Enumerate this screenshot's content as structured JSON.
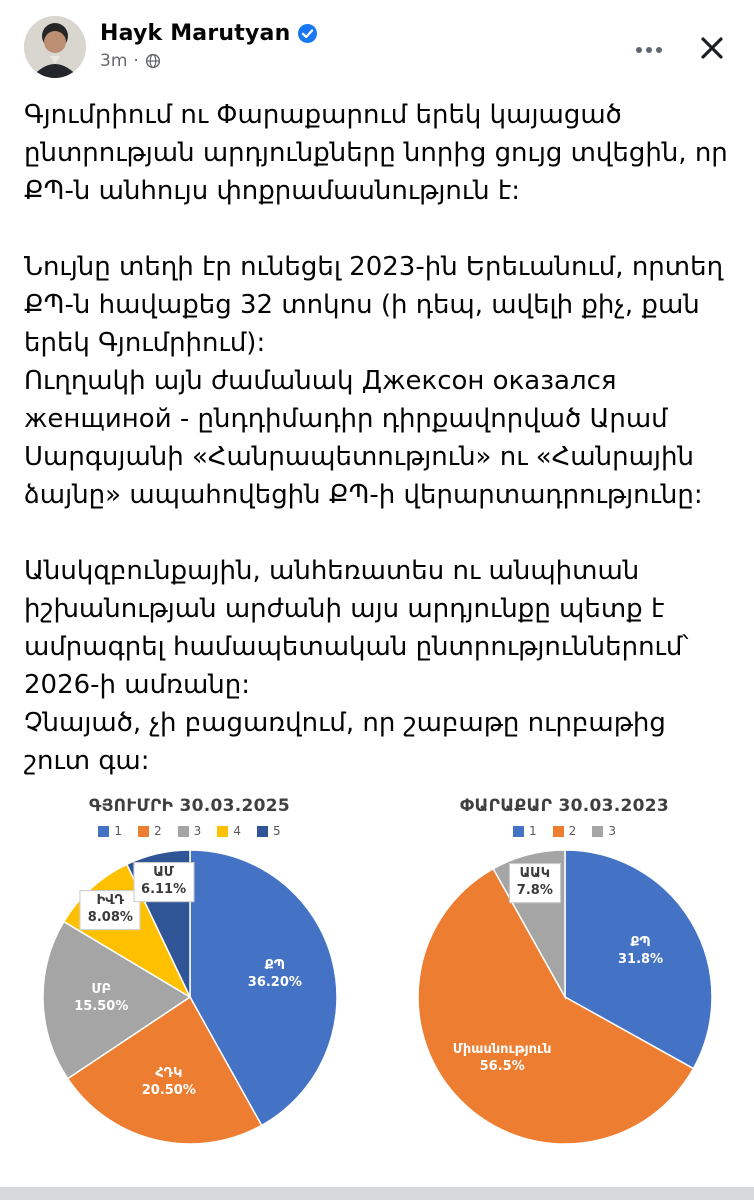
{
  "header": {
    "author": "Hayk Marutyan",
    "timestamp": "3m",
    "separator": "·"
  },
  "post": {
    "paragraphs": [
      "Գյումրիում ու Փարաքարում երեկ կայացած ընտրության արդյունքները նորից ցույց տվեցին, որ ՔՊ-ն անհույս փոքրամասնություն է:",
      "",
      "Նույնը տեղի էր ունեցել 2023-ին Երեւանում, որտեղ ՔՊ-ն հավաքեց 32 տոկոս (ի դեպ, ավելի քիչ, քան երեկ Գյումրիում):",
      "Ուղղակի այն ժամանակ Джексон оказался женщиной -  ընդդիմադիր դիրքավորված Արամ Սարգսյանի «Հանրապետություն» ու «Հանրային ձայնը» ապահովեցին ՔՊ-ի վերարտադրությունը:",
      "",
      "Անսկզբունքային, անհեռատես ու անպիտան իշխանության արժանի այս արդյունքը պետք է ամրագրել համապետական ընտրություններում՝ 2026-ի ամռանը:",
      "Չնայած, չի բացառվում, որ շաբաթը ուրբաթից շուտ գա:"
    ]
  },
  "colors": {
    "verified_blue": "#1877f2",
    "meta_gray": "#65676b",
    "text_black": "#050505"
  },
  "chart_data": [
    {
      "type": "pie",
      "title": "ԳՅՈՒՄՐԻ 30.03.2025",
      "legend": [
        "1",
        "2",
        "3",
        "4",
        "5"
      ],
      "legend_position": "top",
      "slices": [
        {
          "label": "ՔՊ",
          "value": 36.2,
          "pct_label": "36.20%",
          "color": "#4472C4"
        },
        {
          "label": "ՀԴԿ",
          "value": 20.5,
          "pct_label": "20.50%",
          "color": "#ED7D31"
        },
        {
          "label": "ՄԲ",
          "value": 15.5,
          "pct_label": "15.50%",
          "color": "#A5A5A5"
        },
        {
          "label": "ԻՎԴ",
          "value": 8.08,
          "pct_label": "8.08%",
          "color": "#FFC000"
        },
        {
          "label": "ԱՄ",
          "value": 6.11,
          "pct_label": "6.11%",
          "color": "#2F5597"
        }
      ]
    },
    {
      "type": "pie",
      "title": "ՓԱՐԱՔԱՐ 30.03.2023",
      "legend": [
        "1",
        "2",
        "3"
      ],
      "legend_position": "top",
      "slices": [
        {
          "label": "ՔՊ",
          "value": 31.8,
          "pct_label": "31.8%",
          "color": "#4472C4"
        },
        {
          "label": "Միասնություն",
          "value": 56.5,
          "pct_label": "56.5%",
          "color": "#ED7D31"
        },
        {
          "label": "ԱԱԿ",
          "value": 7.8,
          "pct_label": "7.8%",
          "color": "#A5A5A5"
        }
      ]
    }
  ]
}
